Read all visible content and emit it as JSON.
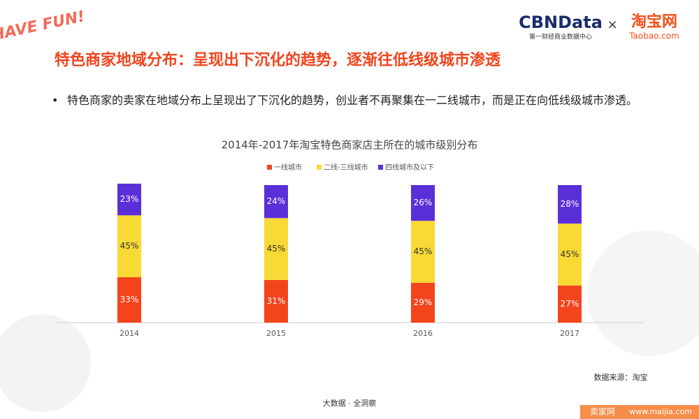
{
  "logo": {
    "fun": "HAVE FUN!",
    "cbn": "CBNData",
    "cbn_sub": "第一财经商业数据中心",
    "times": "×",
    "taobao": "淘宝网",
    "taobao_sub": "Taobao.com"
  },
  "header": {
    "title": "特色商家地域分布：呈现出下沉化的趋势，逐渐往低线级城市渗透"
  },
  "bullets": [
    "特色商家的卖家在地域分布上呈现出了下沉化的趋势，创业者不再聚集在一二线城市，而是正在向低线级城市渗透。"
  ],
  "chart_data": {
    "type": "stacked_bar",
    "title": "2014年-2017年淘宝特色商家店主所在的城市级别分布",
    "categories": [
      "2014",
      "2015",
      "2016",
      "2017"
    ],
    "series": [
      {
        "name": "一线城市",
        "color": "#f4441c",
        "values": [
          33,
          31,
          29,
          27
        ],
        "value_labels": [
          "33%",
          "31%",
          "29%",
          "27%"
        ]
      },
      {
        "name": "二线-三线城市",
        "color": "#f8d935",
        "values": [
          45,
          45,
          45,
          45
        ],
        "value_labels": [
          "45%",
          "45%",
          "45%",
          "45%"
        ]
      },
      {
        "name": "四线城市及以下",
        "color": "#5b2fd8",
        "values": [
          23,
          24,
          26,
          28
        ],
        "value_labels": [
          "23%",
          "24%",
          "26%",
          "28%"
        ]
      }
    ],
    "legend": "top"
  },
  "source": "数据来源：淘宝",
  "footer": "大数据 · 全洞察",
  "watermark": {
    "brand": "卖家网",
    "url": "www.maijia.com"
  }
}
